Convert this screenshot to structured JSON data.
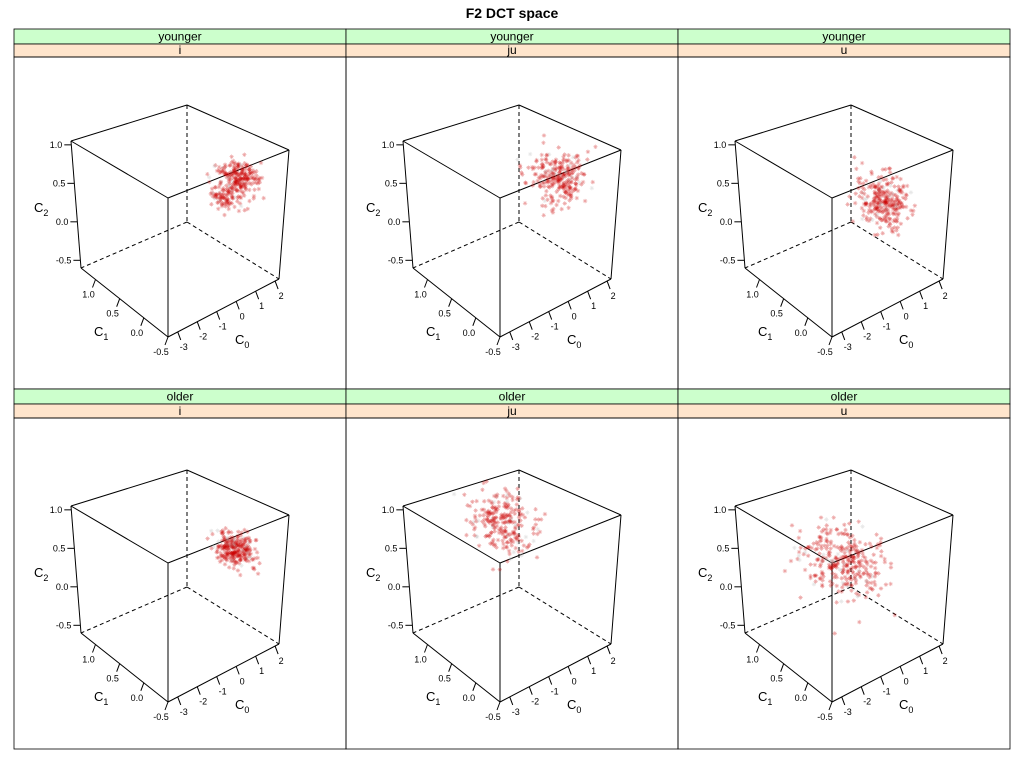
{
  "chart_data": {
    "type": "scatter",
    "title": "F2 DCT space",
    "layout": {
      "rows": 2,
      "cols": 3
    },
    "strip_colors": {
      "group": "#ccffcc",
      "vowel": "#ffe5cc"
    },
    "point_color": "#cc0000",
    "axes": {
      "x": {
        "name": "C",
        "sub": "0",
        "range": [
          -3.5,
          2.2
        ],
        "ticks": [
          -3,
          -2,
          -1,
          0,
          1,
          2
        ]
      },
      "y": {
        "name": "C",
        "sub": "1",
        "range": [
          -0.5,
          1.3
        ],
        "ticks": [
          -0.5,
          0.0,
          0.5,
          1.0
        ],
        "tick_labels": [
          "-0.5",
          "0.0",
          "0.5",
          "1.0"
        ]
      },
      "z": {
        "name": "C",
        "sub": "2",
        "range": [
          -0.6,
          1.05
        ],
        "ticks": [
          -0.5,
          0.0,
          0.5,
          1.0
        ],
        "tick_labels": [
          "-0.5",
          "0.0",
          "0.5",
          "1.0"
        ]
      }
    },
    "panels": [
      {
        "group": "younger",
        "vowel": "i",
        "clusters": [
          {
            "c0": 1.4,
            "c1": 0.0,
            "c2": 0.45,
            "sd": [
              0.35,
              0.15,
              0.08
            ],
            "n": 220
          },
          {
            "c0": 0.5,
            "c1": -0.05,
            "c2": 0.38,
            "sd": [
              0.3,
              0.12,
              0.06
            ],
            "n": 90
          }
        ]
      },
      {
        "group": "younger",
        "vowel": "ju",
        "clusters": [
          {
            "c0": 0.9,
            "c1": -0.05,
            "c2": 0.55,
            "sd": [
              0.5,
              0.15,
              0.12
            ],
            "n": 230
          },
          {
            "c0": -0.6,
            "c1": -0.1,
            "c2": 0.85,
            "sd": [
              0.4,
              0.15,
              0.12
            ],
            "n": 40
          }
        ]
      },
      {
        "group": "younger",
        "vowel": "u",
        "clusters": [
          {
            "c0": 0.3,
            "c1": -0.05,
            "c2": 0.35,
            "sd": [
              0.45,
              0.2,
              0.12
            ],
            "n": 280
          }
        ]
      },
      {
        "group": "older",
        "vowel": "i",
        "clusters": [
          {
            "c0": 1.2,
            "c1": 0.0,
            "c2": 0.42,
            "sd": [
              0.35,
              0.15,
              0.06
            ],
            "n": 280
          }
        ]
      },
      {
        "group": "older",
        "vowel": "ju",
        "clusters": [
          {
            "c0": -1.2,
            "c1": 0.4,
            "c2": 0.85,
            "sd": [
              0.6,
              0.25,
              0.12
            ],
            "n": 250
          }
        ]
      },
      {
        "group": "older",
        "vowel": "u",
        "clusters": [
          {
            "c0": -0.8,
            "c1": 0.35,
            "c2": 0.35,
            "sd": [
              0.7,
              0.3,
              0.14
            ],
            "n": 320
          }
        ]
      }
    ]
  }
}
